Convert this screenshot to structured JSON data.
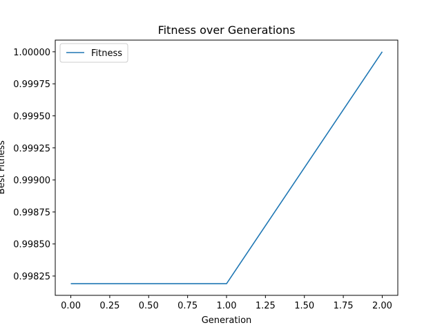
{
  "chart_data": {
    "type": "line",
    "title": "Fitness over Generations",
    "xlabel": "Generation",
    "ylabel": "Best Fitness",
    "xlim": [
      -0.1,
      2.1
    ],
    "ylim": [
      0.998099,
      1.000091
    ],
    "x_ticks": [
      "0.00",
      "0.25",
      "0.50",
      "0.75",
      "1.00",
      "1.25",
      "1.50",
      "1.75",
      "2.00"
    ],
    "y_ticks": [
      "0.99825",
      "0.99850",
      "0.99875",
      "0.99900",
      "0.99925",
      "0.99950",
      "0.99975",
      "1.00000"
    ],
    "series": [
      {
        "name": "Fitness",
        "color": "#1f77b4",
        "x": [
          0,
          1,
          2
        ],
        "y": [
          0.99819,
          0.99819,
          1.0
        ]
      }
    ],
    "grid": false,
    "legend_position": "top-left"
  }
}
